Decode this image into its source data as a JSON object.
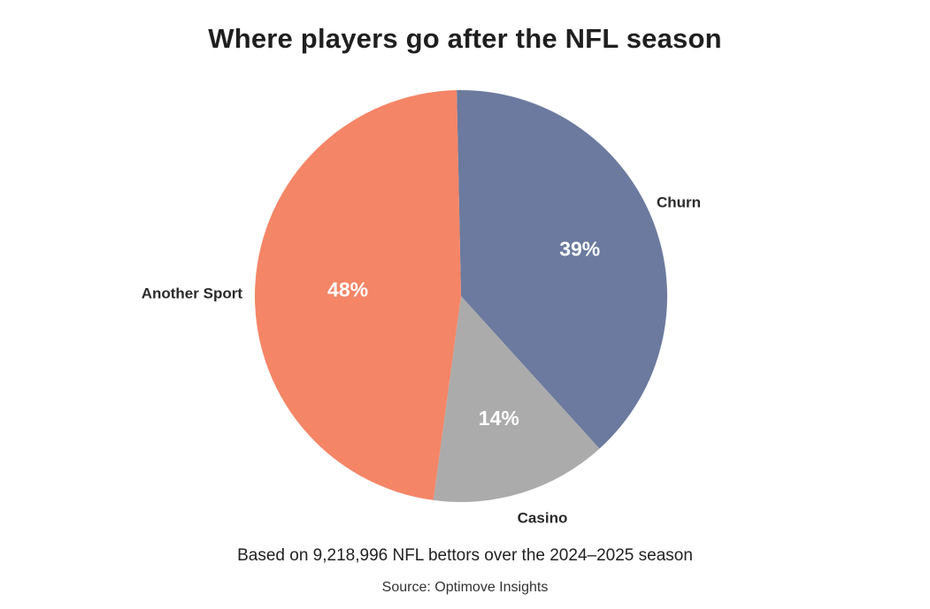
{
  "chart_data": {
    "type": "pie",
    "title": "Where players go after the NFL season",
    "slices": [
      {
        "name": "Churn",
        "value": 39,
        "label": "39%",
        "color": "#6b7a9e"
      },
      {
        "name": "Casino",
        "value": 14,
        "label": "14%",
        "color": "#ababab"
      },
      {
        "name": "Another Sport",
        "value": 48,
        "label": "48%",
        "color": "#f48566"
      }
    ],
    "caption": "Based on 9,218,996 NFL bettors over the 2024–2025 season",
    "source": "Source: Optimove Insights"
  }
}
